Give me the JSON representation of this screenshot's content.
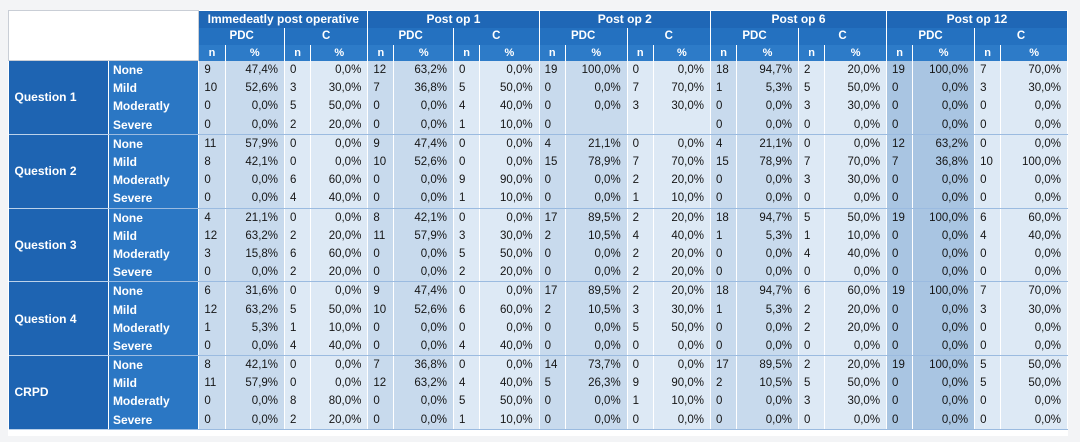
{
  "table": {
    "groups": [
      "Immedeatly post operative",
      "Post op 1",
      "Post op 2",
      "Post op 6",
      "Post op 12"
    ],
    "subgroups": [
      "PDC",
      "C"
    ],
    "col_labels": [
      "n",
      "%"
    ],
    "blocks": [
      {
        "label": "Question 1",
        "rows": [
          {
            "sev": "None",
            "cells": [
              "9",
              "47,4%",
              "0",
              "0,0%",
              "12",
              "63,2%",
              "0",
              "0,0%",
              "19",
              "100,0%",
              "0",
              "0,0%",
              "18",
              "94,7%",
              "2",
              "20,0%",
              "19",
              "100,0%",
              "7",
              "70,0%"
            ]
          },
          {
            "sev": "Mild",
            "cells": [
              "10",
              "52,6%",
              "3",
              "30,0%",
              "7",
              "36,8%",
              "5",
              "50,0%",
              "0",
              "0,0%",
              "7",
              "70,0%",
              "1",
              "5,3%",
              "5",
              "50,0%",
              "0",
              "0,0%",
              "3",
              "30,0%"
            ]
          },
          {
            "sev": "Moderatly",
            "cells": [
              "0",
              "0,0%",
              "5",
              "50,0%",
              "0",
              "0,0%",
              "4",
              "40,0%",
              "0",
              "0,0%",
              "3",
              "30,0%",
              "0",
              "0,0%",
              "3",
              "30,0%",
              "0",
              "0,0%",
              "0",
              "0,0%"
            ]
          },
          {
            "sev": "Severe",
            "cells": [
              "0",
              "0,0%",
              "2",
              "20,0%",
              "0",
              "0,0%",
              "1",
              "10,0%",
              "0",
              "",
              "",
              "",
              "0",
              "0,0%",
              "0",
              "0,0%",
              "0",
              "0,0%",
              "0",
              "0,0%"
            ]
          }
        ]
      },
      {
        "label": "Question 2",
        "rows": [
          {
            "sev": "None",
            "cells": [
              "11",
              "57,9%",
              "0",
              "0,0%",
              "9",
              "47,4%",
              "0",
              "0,0%",
              "4",
              "21,1%",
              "0",
              "0,0%",
              "4",
              "21,1%",
              "0",
              "0,0%",
              "12",
              "63,2%",
              "0",
              "0,0%"
            ]
          },
          {
            "sev": "Mild",
            "cells": [
              "8",
              "42,1%",
              "0",
              "0,0%",
              "10",
              "52,6%",
              "0",
              "0,0%",
              "15",
              "78,9%",
              "7",
              "70,0%",
              "15",
              "78,9%",
              "7",
              "70,0%",
              "7",
              "36,8%",
              "10",
              "100,0%"
            ]
          },
          {
            "sev": "Moderatly",
            "cells": [
              "0",
              "0,0%",
              "6",
              "60,0%",
              "0",
              "0,0%",
              "9",
              "90,0%",
              "0",
              "0,0%",
              "2",
              "20,0%",
              "0",
              "0,0%",
              "3",
              "30,0%",
              "0",
              "0,0%",
              "0",
              "0,0%"
            ]
          },
          {
            "sev": "Severe",
            "cells": [
              "0",
              "0,0%",
              "4",
              "40,0%",
              "0",
              "0,0%",
              "1",
              "10,0%",
              "0",
              "0,0%",
              "1",
              "10,0%",
              "0",
              "0,0%",
              "0",
              "0,0%",
              "0",
              "0,0%",
              "0",
              "0,0%"
            ]
          }
        ]
      },
      {
        "label": "Question 3",
        "rows": [
          {
            "sev": "None",
            "cells": [
              "4",
              "21,1%",
              "0",
              "0,0%",
              "8",
              "42,1%",
              "0",
              "0,0%",
              "17",
              "89,5%",
              "2",
              "20,0%",
              "18",
              "94,7%",
              "5",
              "50,0%",
              "19",
              "100,0%",
              "6",
              "60,0%"
            ]
          },
          {
            "sev": "Mild",
            "cells": [
              "12",
              "63,2%",
              "2",
              "20,0%",
              "11",
              "57,9%",
              "3",
              "30,0%",
              "2",
              "10,5%",
              "4",
              "40,0%",
              "1",
              "5,3%",
              "1",
              "10,0%",
              "0",
              "0,0%",
              "4",
              "40,0%"
            ]
          },
          {
            "sev": "Moderatly",
            "cells": [
              "3",
              "15,8%",
              "6",
              "60,0%",
              "0",
              "0,0%",
              "5",
              "50,0%",
              "0",
              "0,0%",
              "2",
              "20,0%",
              "0",
              "0,0%",
              "4",
              "40,0%",
              "0",
              "0,0%",
              "0",
              "0,0%"
            ]
          },
          {
            "sev": "Severe",
            "cells": [
              "0",
              "0,0%",
              "2",
              "20,0%",
              "0",
              "0,0%",
              "2",
              "20,0%",
              "0",
              "0,0%",
              "2",
              "20,0%",
              "0",
              "0,0%",
              "0",
              "0,0%",
              "0",
              "0,0%",
              "0",
              "0,0%"
            ]
          }
        ]
      },
      {
        "label": "Question 4",
        "rows": [
          {
            "sev": "None",
            "cells": [
              "6",
              "31,6%",
              "0",
              "0,0%",
              "9",
              "47,4%",
              "0",
              "0,0%",
              "17",
              "89,5%",
              "2",
              "20,0%",
              "18",
              "94,7%",
              "6",
              "60,0%",
              "19",
              "100,0%",
              "7",
              "70,0%"
            ]
          },
          {
            "sev": "Mild",
            "cells": [
              "12",
              "63,2%",
              "5",
              "50,0%",
              "10",
              "52,6%",
              "6",
              "60,0%",
              "2",
              "10,5%",
              "3",
              "30,0%",
              "1",
              "5,3%",
              "2",
              "20,0%",
              "0",
              "0,0%",
              "3",
              "30,0%"
            ]
          },
          {
            "sev": "Moderatly",
            "cells": [
              "1",
              "5,3%",
              "1",
              "10,0%",
              "0",
              "0,0%",
              "0",
              "0,0%",
              "0",
              "0,0%",
              "5",
              "50,0%",
              "0",
              "0,0%",
              "2",
              "20,0%",
              "0",
              "0,0%",
              "0",
              "0,0%"
            ]
          },
          {
            "sev": "Severe",
            "cells": [
              "0",
              "0,0%",
              "4",
              "40,0%",
              "0",
              "0,0%",
              "4",
              "40,0%",
              "0",
              "0,0%",
              "0",
              "0,0%",
              "0",
              "0,0%",
              "0",
              "0,0%",
              "0",
              "0,0%",
              "0",
              "0,0%"
            ]
          }
        ]
      },
      {
        "label": "CRPD",
        "rows": [
          {
            "sev": "None",
            "cells": [
              "8",
              "42,1%",
              "0",
              "0,0%",
              "7",
              "36,8%",
              "0",
              "0,0%",
              "14",
              "73,7%",
              "0",
              "0,0%",
              "17",
              "89,5%",
              "2",
              "20,0%",
              "19",
              "100,0%",
              "5",
              "50,0%"
            ]
          },
          {
            "sev": "Mild",
            "cells": [
              "11",
              "57,9%",
              "0",
              "0,0%",
              "12",
              "63,2%",
              "4",
              "40,0%",
              "5",
              "26,3%",
              "9",
              "90,0%",
              "2",
              "10,5%",
              "5",
              "50,0%",
              "0",
              "0,0%",
              "5",
              "50,0%"
            ]
          },
          {
            "sev": "Moderatly",
            "cells": [
              "0",
              "0,0%",
              "8",
              "80,0%",
              "0",
              "0,0%",
              "5",
              "50,0%",
              "0",
              "0,0%",
              "1",
              "10,0%",
              "0",
              "0,0%",
              "3",
              "30,0%",
              "0",
              "0,0%",
              "0",
              "0,0%"
            ]
          },
          {
            "sev": "Severe",
            "cells": [
              "0",
              "0,0%",
              "2",
              "20,0%",
              "0",
              "0,0%",
              "1",
              "10,0%",
              "0",
              "0,0%",
              "0",
              "0,0%",
              "0",
              "0,0%",
              "0",
              "0,0%",
              "0",
              "0,0%",
              "0",
              "0,0%"
            ]
          }
        ]
      }
    ]
  }
}
